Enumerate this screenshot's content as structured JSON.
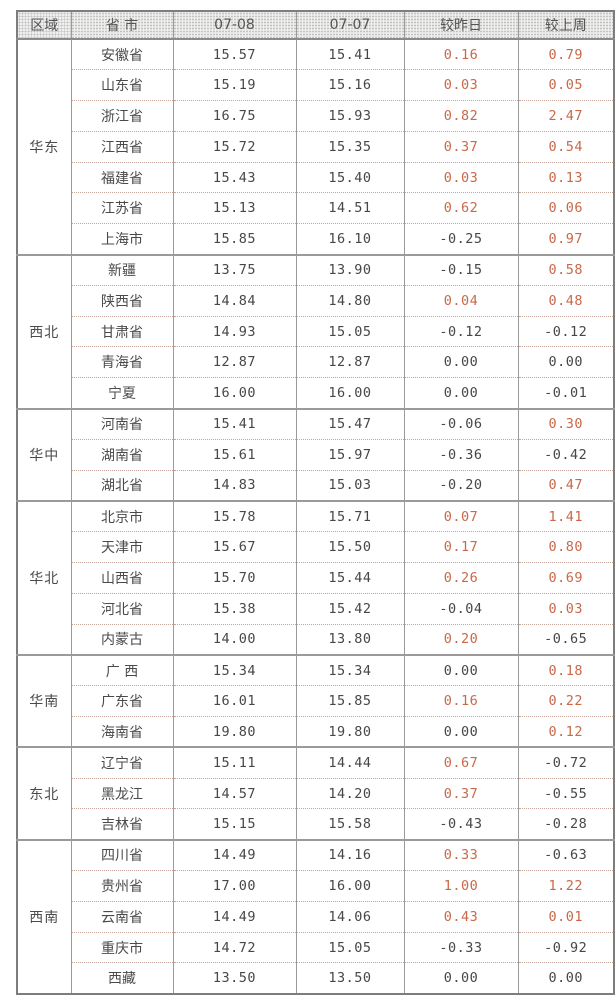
{
  "colors": {
    "positive_change": "#c8694a",
    "neutral_text": "#474747",
    "header_text": "#565656"
  },
  "chart_data": {
    "type": "table",
    "columns": [
      "区域",
      "省 市",
      "07-08",
      "07-07",
      "较昨日",
      "较上周"
    ],
    "regions": [
      {
        "name": "华东",
        "rows": [
          [
            "安徽省",
            "15.57",
            "15.41",
            "0.16",
            "0.79"
          ],
          [
            "山东省",
            "15.19",
            "15.16",
            "0.03",
            "0.05"
          ],
          [
            "浙江省",
            "16.75",
            "15.93",
            "0.82",
            "2.47"
          ],
          [
            "江西省",
            "15.72",
            "15.35",
            "0.37",
            "0.54"
          ],
          [
            "福建省",
            "15.43",
            "15.40",
            "0.03",
            "0.13"
          ],
          [
            "江苏省",
            "15.13",
            "14.51",
            "0.62",
            "0.06"
          ],
          [
            "上海市",
            "15.85",
            "16.10",
            "-0.25",
            "0.97"
          ]
        ]
      },
      {
        "name": "西北",
        "rows": [
          [
            "新疆",
            "13.75",
            "13.90",
            "-0.15",
            "0.58"
          ],
          [
            "陕西省",
            "14.84",
            "14.80",
            "0.04",
            "0.48"
          ],
          [
            "甘肃省",
            "14.93",
            "15.05",
            "-0.12",
            "-0.12"
          ],
          [
            "青海省",
            "12.87",
            "12.87",
            "0.00",
            "0.00"
          ],
          [
            "宁夏",
            "16.00",
            "16.00",
            "0.00",
            "-0.01"
          ]
        ]
      },
      {
        "name": "华中",
        "rows": [
          [
            "河南省",
            "15.41",
            "15.47",
            "-0.06",
            "0.30"
          ],
          [
            "湖南省",
            "15.61",
            "15.97",
            "-0.36",
            "-0.42"
          ],
          [
            "湖北省",
            "14.83",
            "15.03",
            "-0.20",
            "0.47"
          ]
        ]
      },
      {
        "name": "华北",
        "rows": [
          [
            "北京市",
            "15.78",
            "15.71",
            "0.07",
            "1.41"
          ],
          [
            "天津市",
            "15.67",
            "15.50",
            "0.17",
            "0.80"
          ],
          [
            "山西省",
            "15.70",
            "15.44",
            "0.26",
            "0.69"
          ],
          [
            "河北省",
            "15.38",
            "15.42",
            "-0.04",
            "0.03"
          ],
          [
            "内蒙古",
            "14.00",
            "13.80",
            "0.20",
            "-0.65"
          ]
        ]
      },
      {
        "name": "华南",
        "rows": [
          [
            "广 西",
            "15.34",
            "15.34",
            "0.00",
            "0.18"
          ],
          [
            "广东省",
            "16.01",
            "15.85",
            "0.16",
            "0.22"
          ],
          [
            "海南省",
            "19.80",
            "19.80",
            "0.00",
            "0.12"
          ]
        ]
      },
      {
        "name": "东北",
        "rows": [
          [
            "辽宁省",
            "15.11",
            "14.44",
            "0.67",
            "-0.72"
          ],
          [
            "黑龙江",
            "14.57",
            "14.20",
            "0.37",
            "-0.55"
          ],
          [
            "吉林省",
            "15.15",
            "15.58",
            "-0.43",
            "-0.28"
          ]
        ]
      },
      {
        "name": "西南",
        "rows": [
          [
            "四川省",
            "14.49",
            "14.16",
            "0.33",
            "-0.63"
          ],
          [
            "贵州省",
            "17.00",
            "16.00",
            "1.00",
            "1.22"
          ],
          [
            "云南省",
            "14.49",
            "14.06",
            "0.43",
            "0.01"
          ],
          [
            "重庆市",
            "14.72",
            "15.05",
            "-0.33",
            "-0.92"
          ],
          [
            "西藏",
            "13.50",
            "13.50",
            "0.00",
            "0.00"
          ]
        ]
      }
    ]
  }
}
